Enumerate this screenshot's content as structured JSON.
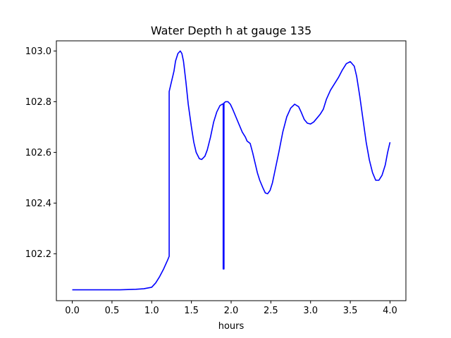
{
  "chart_data": {
    "type": "line",
    "title": "Water Depth h at gauge 135",
    "xlabel": "hours",
    "ylabel": "",
    "xlim": [
      -0.2,
      4.2
    ],
    "ylim": [
      102.015,
      103.04
    ],
    "x_ticks": [
      0.0,
      0.5,
      1.0,
      1.5,
      2.0,
      2.5,
      3.0,
      3.5,
      4.0
    ],
    "x_tick_labels": [
      "0.0",
      "0.5",
      "1.0",
      "1.5",
      "2.0",
      "2.5",
      "3.0",
      "3.5",
      "4.0"
    ],
    "y_ticks": [
      102.2,
      102.4,
      102.6,
      102.8,
      103.0
    ],
    "y_tick_labels": [
      "102.2",
      "102.4",
      "102.6",
      "102.8",
      "103.0"
    ],
    "grid": false,
    "legend": "none",
    "series": [
      {
        "color": "#0000ff",
        "points": [
          [
            0.0,
            102.058
          ],
          [
            0.2,
            102.058
          ],
          [
            0.4,
            102.058
          ],
          [
            0.6,
            102.058
          ],
          [
            0.8,
            102.06
          ],
          [
            0.9,
            102.062
          ],
          [
            1.0,
            102.068
          ],
          [
            1.05,
            102.085
          ],
          [
            1.1,
            102.11
          ],
          [
            1.15,
            102.14
          ],
          [
            1.2,
            102.175
          ],
          [
            1.22,
            102.19
          ],
          [
            1.22,
            102.84
          ],
          [
            1.25,
            102.88
          ],
          [
            1.28,
            102.92
          ],
          [
            1.3,
            102.96
          ],
          [
            1.33,
            102.99
          ],
          [
            1.36,
            103.0
          ],
          [
            1.38,
            102.99
          ],
          [
            1.4,
            102.96
          ],
          [
            1.43,
            102.88
          ],
          [
            1.46,
            102.79
          ],
          [
            1.5,
            102.7
          ],
          [
            1.53,
            102.64
          ],
          [
            1.56,
            102.6
          ],
          [
            1.6,
            102.575
          ],
          [
            1.63,
            102.572
          ],
          [
            1.67,
            102.585
          ],
          [
            1.7,
            102.61
          ],
          [
            1.74,
            102.66
          ],
          [
            1.78,
            102.72
          ],
          [
            1.82,
            102.76
          ],
          [
            1.86,
            102.785
          ],
          [
            1.9,
            102.792
          ],
          [
            1.9,
            102.14
          ],
          [
            1.91,
            102.14
          ],
          [
            1.91,
            102.795
          ],
          [
            1.93,
            102.8
          ],
          [
            1.96,
            102.8
          ],
          [
            1.99,
            102.79
          ],
          [
            2.02,
            102.77
          ],
          [
            2.06,
            102.74
          ],
          [
            2.1,
            102.71
          ],
          [
            2.14,
            102.68
          ],
          [
            2.18,
            102.66
          ],
          [
            2.2,
            102.645
          ],
          [
            2.22,
            102.64
          ],
          [
            2.24,
            102.635
          ],
          [
            2.27,
            102.6
          ],
          [
            2.3,
            102.56
          ],
          [
            2.33,
            102.52
          ],
          [
            2.36,
            102.49
          ],
          [
            2.4,
            102.46
          ],
          [
            2.43,
            102.44
          ],
          [
            2.46,
            102.437
          ],
          [
            2.49,
            102.45
          ],
          [
            2.52,
            102.48
          ],
          [
            2.56,
            102.54
          ],
          [
            2.6,
            102.6
          ],
          [
            2.65,
            102.68
          ],
          [
            2.7,
            102.74
          ],
          [
            2.75,
            102.775
          ],
          [
            2.8,
            102.79
          ],
          [
            2.85,
            102.78
          ],
          [
            2.88,
            102.76
          ],
          [
            2.92,
            102.73
          ],
          [
            2.96,
            102.715
          ],
          [
            3.0,
            102.712
          ],
          [
            3.04,
            102.72
          ],
          [
            3.08,
            102.735
          ],
          [
            3.12,
            102.75
          ],
          [
            3.16,
            102.77
          ],
          [
            3.2,
            102.81
          ],
          [
            3.25,
            102.845
          ],
          [
            3.3,
            102.87
          ],
          [
            3.35,
            102.895
          ],
          [
            3.4,
            102.925
          ],
          [
            3.45,
            102.95
          ],
          [
            3.5,
            102.958
          ],
          [
            3.55,
            102.94
          ],
          [
            3.58,
            102.9
          ],
          [
            3.62,
            102.82
          ],
          [
            3.66,
            102.73
          ],
          [
            3.7,
            102.64
          ],
          [
            3.74,
            102.57
          ],
          [
            3.78,
            102.52
          ],
          [
            3.82,
            102.49
          ],
          [
            3.86,
            102.49
          ],
          [
            3.9,
            102.51
          ],
          [
            3.94,
            102.55
          ],
          [
            3.97,
            102.6
          ],
          [
            4.0,
            102.64
          ]
        ]
      }
    ]
  }
}
